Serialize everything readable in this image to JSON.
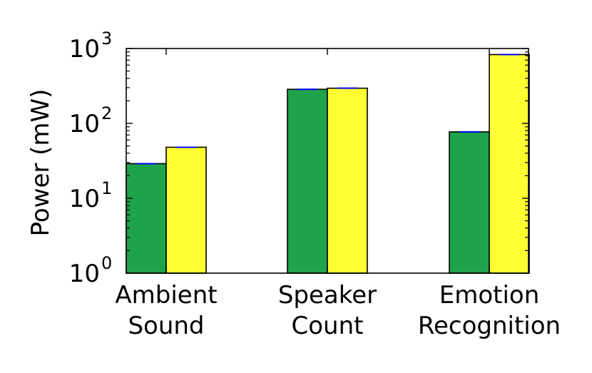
{
  "chart_data": {
    "type": "bar",
    "scale_y": "log",
    "ylim": [
      1,
      1000
    ],
    "ylabel": "Power (mW)",
    "xlabel": "",
    "categories": [
      [
        "Ambient",
        "Sound"
      ],
      [
        "Speaker",
        "Count"
      ],
      [
        "Emotion",
        "Recognition"
      ]
    ],
    "series": [
      {
        "values": [
          29,
          285,
          77
        ],
        "color": "#1ea34a"
      },
      {
        "values": [
          48,
          295,
          830
        ],
        "color": "#ffff33"
      }
    ],
    "error_bar_color": "#0000ff",
    "y_ticks": [
      {
        "base": "10",
        "exp": "0",
        "value": 1
      },
      {
        "base": "10",
        "exp": "1",
        "value": 10
      },
      {
        "base": "10",
        "exp": "2",
        "value": 100
      },
      {
        "base": "10",
        "exp": "3",
        "value": 1000
      }
    ],
    "grid": false,
    "legend": "none"
  }
}
